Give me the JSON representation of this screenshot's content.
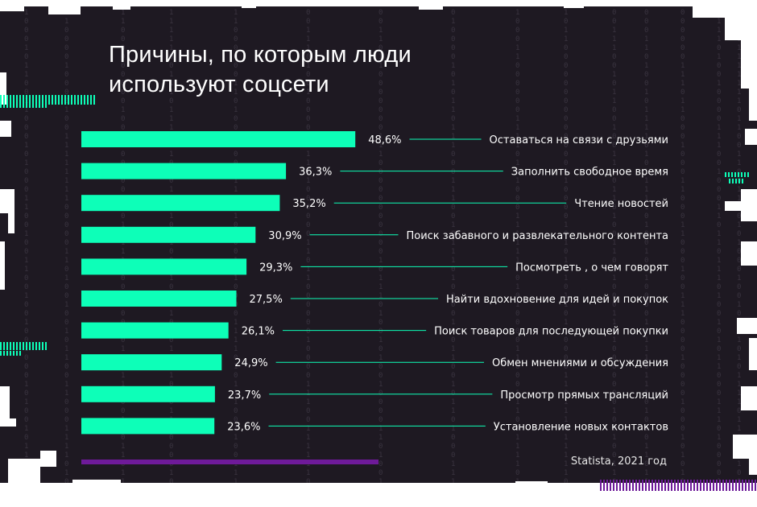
{
  "colors": {
    "background": "#1e1922",
    "bar": "#0dffb8",
    "accent_purple": "#6e1a99",
    "text": "#ffffff",
    "leader": "#0dffb8"
  },
  "title_lines": [
    "Причины, по которым люди",
    "используют соцсети"
  ],
  "source": "Statista, 2021 год",
  "chart_data": {
    "type": "bar",
    "orientation": "horizontal",
    "title": "Причины, по которым люди используют соцсети",
    "categories": [
      "Оставаться на связи с друзьями",
      "Заполнить свободное время",
      "Чтение новостей",
      "Поиск забавного и развлекательного контента",
      "Посмотреть , о чем говорят",
      "Найти вдохновение для идей и покупок",
      "Поиск товаров для последующей покупки",
      "Обмен мнениями и обсуждения",
      "Просмотр прямых трансляций",
      "Установление новых контактов"
    ],
    "values": [
      48.6,
      36.3,
      35.2,
      30.9,
      29.3,
      27.5,
      26.1,
      24.9,
      23.7,
      23.6
    ],
    "value_labels": [
      "48,6%",
      "36,3%",
      "35,2%",
      "30,9%",
      "29,3%",
      "27,5%",
      "26,1%",
      "24,9%",
      "23,7%",
      "23,6%"
    ],
    "grid": false,
    "legend": "none"
  }
}
